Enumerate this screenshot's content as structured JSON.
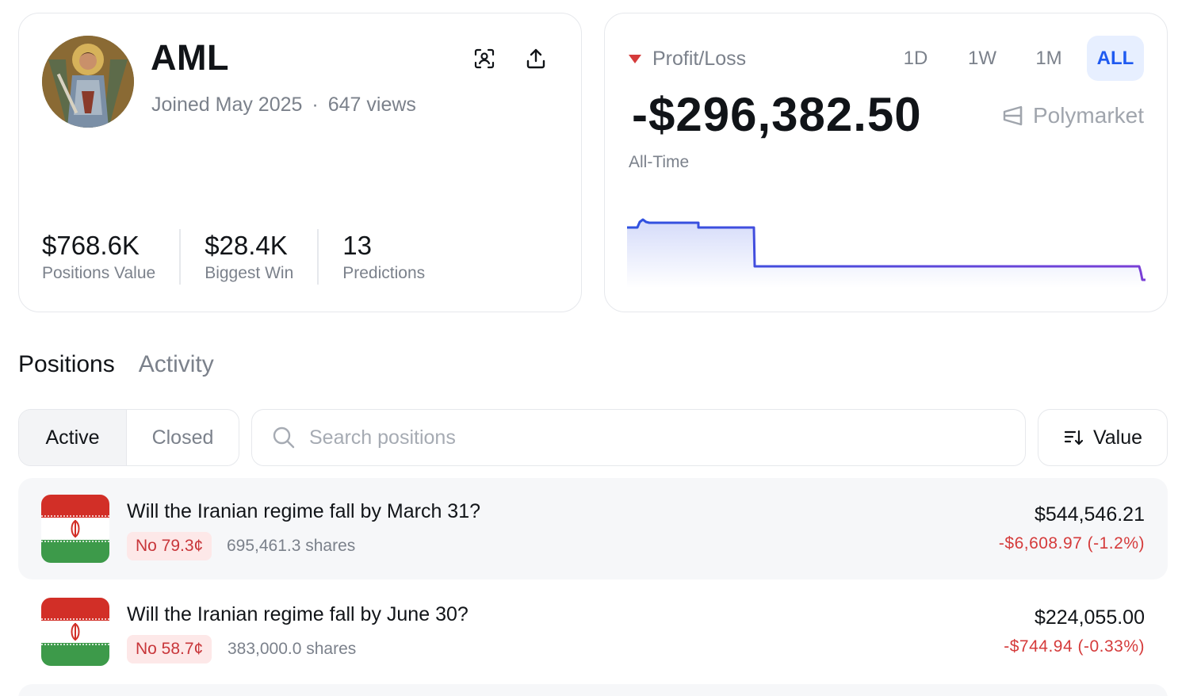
{
  "profile": {
    "username": "AML",
    "joined": "Joined May 2025",
    "views": "647 views",
    "stats": [
      {
        "value": "$768.6K",
        "label": "Positions Value"
      },
      {
        "value": "$28.4K",
        "label": "Biggest Win"
      },
      {
        "value": "13",
        "label": "Predictions"
      }
    ]
  },
  "pnl": {
    "label": "Profit/Loss",
    "ranges": [
      "1D",
      "1W",
      "1M",
      "ALL"
    ],
    "active_range": "ALL",
    "value": "-$296,382.50",
    "brand": "Polymarket",
    "period": "All-Time"
  },
  "tabs": [
    "Positions",
    "Activity"
  ],
  "filters": {
    "active": "Active",
    "closed": "Closed"
  },
  "search": {
    "placeholder": "Search positions"
  },
  "sort": {
    "label": "Value"
  },
  "positions": [
    {
      "title": "Will the Iranian regime fall by March 31?",
      "badge": "No 79.3¢",
      "shares": "695,461.3 shares",
      "value": "$544,546.21",
      "change": "-$6,608.97 (-1.2%)"
    },
    {
      "title": "Will the Iranian regime fall by June 30?",
      "badge": "No 58.7¢",
      "shares": "383,000.0 shares",
      "value": "$224,055.00",
      "change": "-$744.94 (-0.33%)"
    }
  ],
  "colors": {
    "accent": "#1f5af0",
    "loss": "#d53b3b",
    "badge_bg": "#fde8e8"
  },
  "icons": [
    "qr-scan-icon",
    "share-upload-icon",
    "loss-triangle-icon",
    "polymarket-logo-icon",
    "search-icon",
    "sort-icon",
    "iran-flag-icon"
  ]
}
